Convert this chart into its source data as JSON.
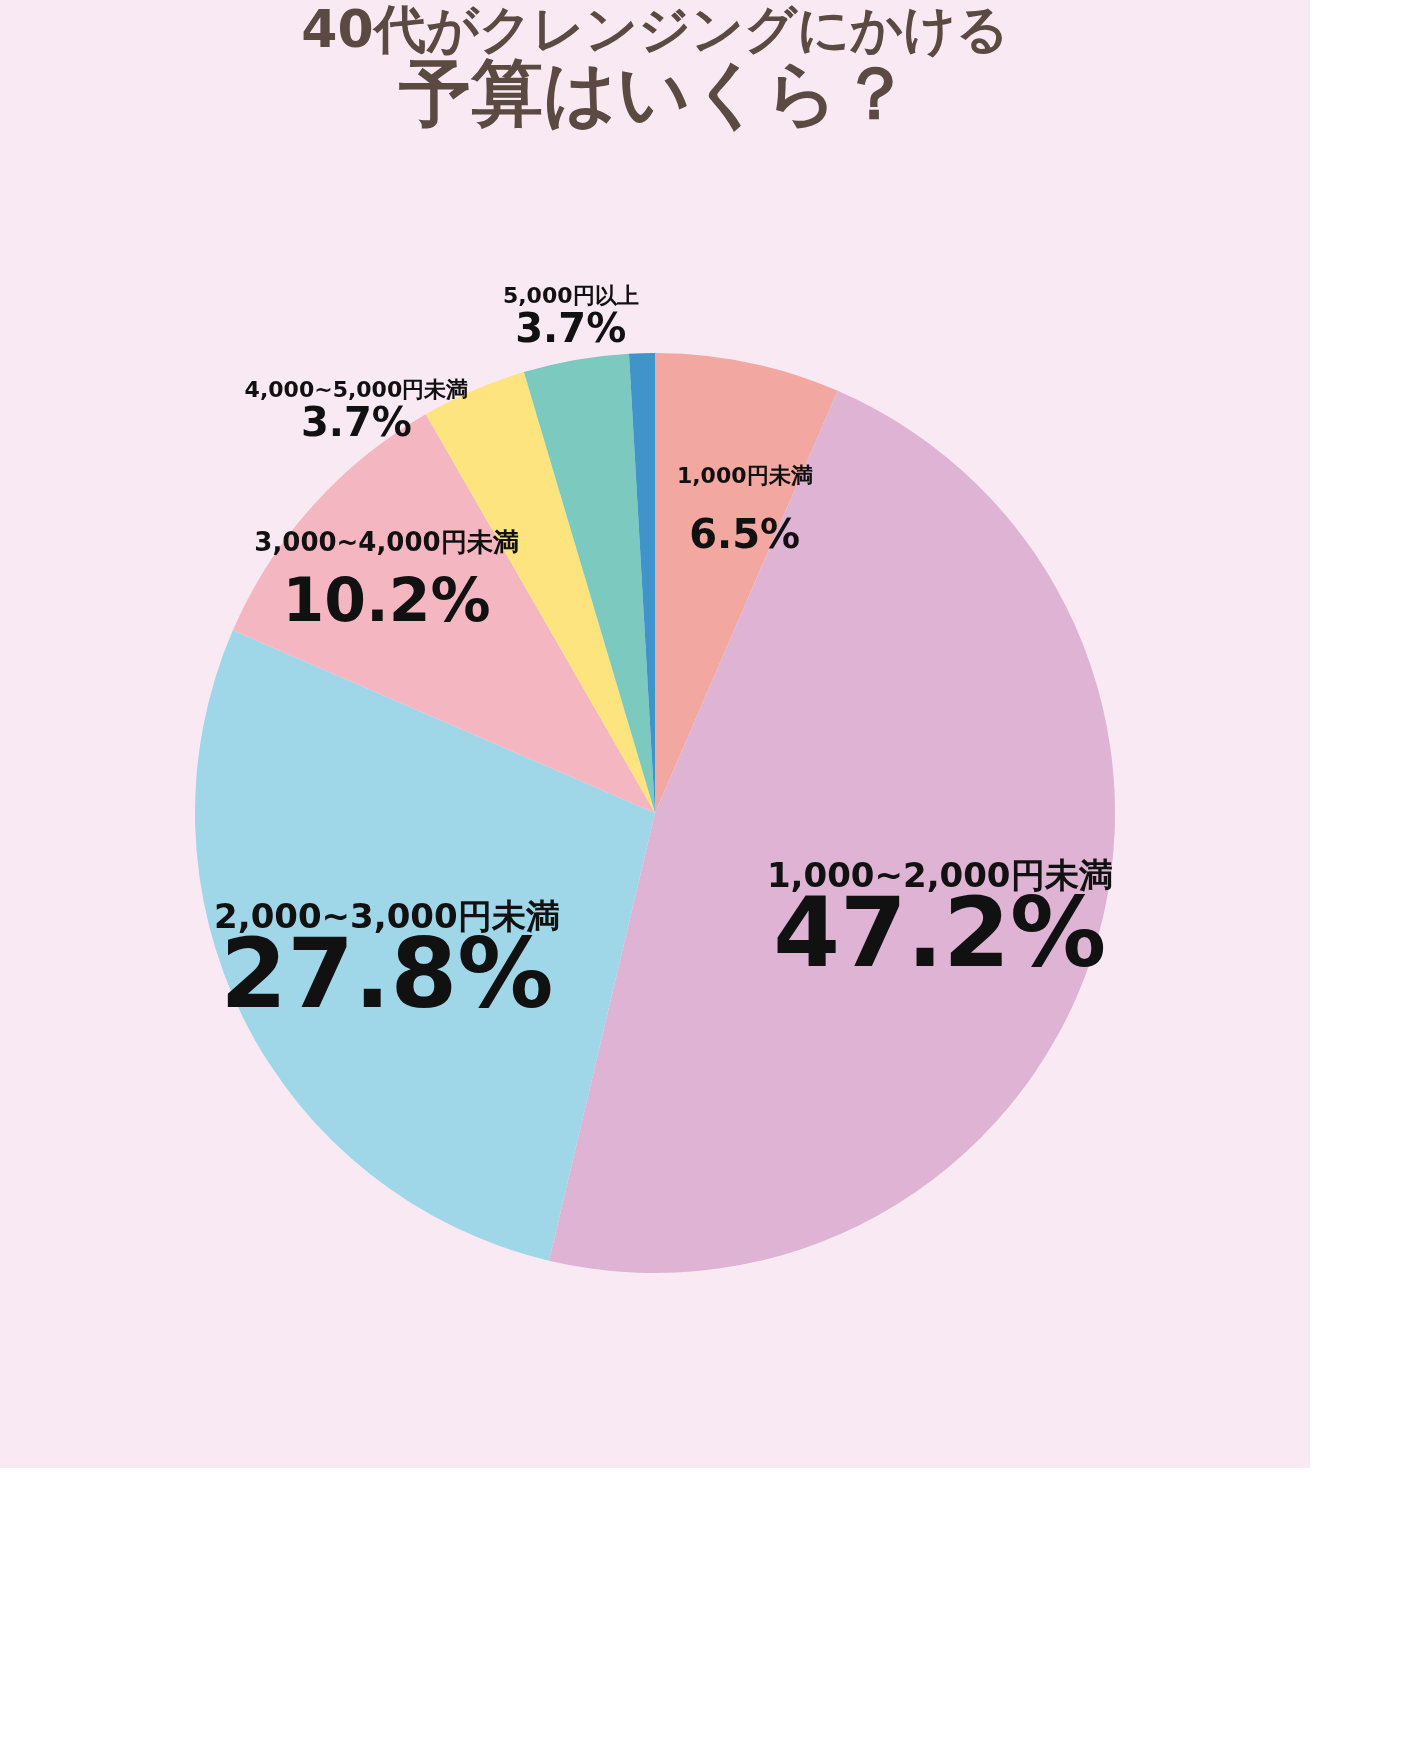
{
  "chart_data": {
    "type": "pie",
    "title": "40代がクレンジングにかける",
    "subtitle": "予算はいくら？",
    "categories": [
      "1,000円未満",
      "1,000~2,000円未満",
      "2,000~3,000円未満",
      "3,000~4,000円未満",
      "4,000~5,000円未満",
      "5,000円以上",
      null
    ],
    "values": [
      6.5,
      47.2,
      27.8,
      10.2,
      3.7,
      3.7,
      0.9
    ],
    "colors": [
      "#f2a7a0",
      "#deb3d3",
      "#9fd7e9",
      "#f4b6c1",
      "#fde47f",
      "#7ccabf",
      "#3f95c9"
    ],
    "value_labels": [
      "6.5%",
      "47.2%",
      "27.8%",
      "10.2%",
      "3.7%",
      "3.7%",
      null
    ],
    "legend": false
  }
}
